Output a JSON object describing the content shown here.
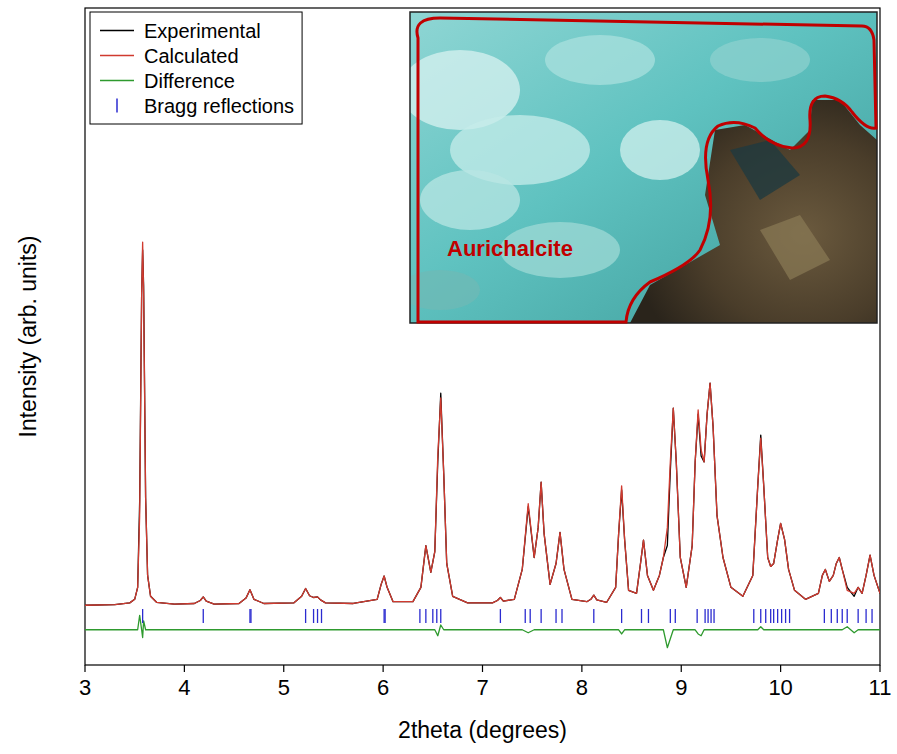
{
  "chart_data": {
    "type": "line",
    "x_label": "2theta (degrees)",
    "y_label": "Intensity (arb. units)",
    "xlim": [
      3,
      11
    ],
    "xticks": [
      3,
      4,
      5,
      6,
      7,
      8,
      9,
      10,
      11
    ],
    "ylim": [
      -10,
      100
    ],
    "tick_labels": "x",
    "grid": false,
    "legend": "upper left",
    "annotations": [
      {
        "text": "Aurichalcite"
      }
    ],
    "x": [
      3.0,
      3.3,
      3.45,
      3.5,
      3.53,
      3.55,
      3.57,
      3.58,
      3.59,
      3.61,
      3.63,
      3.66,
      3.72,
      3.9,
      4.1,
      4.16,
      4.19,
      4.22,
      4.3,
      4.55,
      4.62,
      4.66,
      4.7,
      4.8,
      5.1,
      5.18,
      5.22,
      5.26,
      5.3,
      5.34,
      5.37,
      5.42,
      5.7,
      5.94,
      5.98,
      6.01,
      6.04,
      6.1,
      6.3,
      6.38,
      6.43,
      6.48,
      6.52,
      6.55,
      6.58,
      6.61,
      6.64,
      6.7,
      6.85,
      7.1,
      7.15,
      7.18,
      7.21,
      7.32,
      7.4,
      7.46,
      7.52,
      7.56,
      7.59,
      7.62,
      7.68,
      7.74,
      7.78,
      7.82,
      7.9,
      8.05,
      8.09,
      8.12,
      8.15,
      8.25,
      8.34,
      8.37,
      8.4,
      8.43,
      8.47,
      8.55,
      8.59,
      8.62,
      8.66,
      8.72,
      8.78,
      8.82,
      8.86,
      8.89,
      8.92,
      8.95,
      8.99,
      9.05,
      9.11,
      9.14,
      9.17,
      9.2,
      9.23,
      9.26,
      9.29,
      9.32,
      9.36,
      9.42,
      9.5,
      9.62,
      9.72,
      9.77,
      9.8,
      9.83,
      9.87,
      9.9,
      9.93,
      9.97,
      10.0,
      10.04,
      10.08,
      10.14,
      10.25,
      10.38,
      10.42,
      10.45,
      10.49,
      10.53,
      10.56,
      10.59,
      10.62,
      10.67,
      10.74,
      10.78,
      10.82,
      10.86,
      10.9,
      10.94,
      11.0
    ],
    "series": [
      {
        "name": "Experimental",
        "color": "#000000",
        "type": "line",
        "line_style": "solid",
        "values": [
          0,
          0.1,
          0.4,
          1,
          3,
          17.4,
          52,
          59.5,
          53.5,
          18,
          5,
          1.5,
          0.5,
          0.2,
          0.3,
          0.8,
          1.4,
          0.7,
          0.2,
          0.3,
          1.2,
          2.6,
          1,
          0.3,
          0.4,
          1.5,
          2.8,
          1.6,
          1.3,
          1.4,
          0.9,
          0.4,
          0.3,
          1,
          3.5,
          4.9,
          3,
          0.6,
          0.6,
          3,
          10,
          5.5,
          9,
          24,
          35.5,
          22,
          7,
          1.5,
          0.4,
          0.4,
          0.8,
          1.3,
          0.7,
          1,
          6,
          16.5,
          8,
          13,
          20.6,
          12,
          3.5,
          7,
          12.2,
          6,
          1,
          0.6,
          1,
          1.7,
          0.9,
          0.5,
          3,
          12,
          19.3,
          11,
          2.5,
          2,
          7,
          10.9,
          5,
          2.5,
          5,
          8,
          10,
          22.5,
          33,
          24,
          8,
          3,
          10,
          24,
          32,
          25,
          24,
          32,
          37.2,
          30,
          15,
          8,
          3,
          1.5,
          5,
          20,
          28.5,
          20,
          8,
          6.5,
          7,
          11,
          13.7,
          11,
          6,
          2.5,
          1,
          2,
          5,
          6,
          4,
          5,
          7,
          8,
          6,
          3,
          1.5,
          3,
          2,
          5,
          8.4,
          5,
          2
        ]
      },
      {
        "name": "Calculated",
        "color": "#d03a2f",
        "type": "line",
        "line_style": "solid",
        "values": [
          0,
          0.1,
          0.4,
          1,
          3,
          15,
          52,
          60.8,
          52,
          18,
          5,
          1.5,
          0.5,
          0.2,
          0.3,
          0.8,
          1.4,
          0.7,
          0.2,
          0.3,
          1.2,
          2.6,
          1,
          0.3,
          0.4,
          1.5,
          2.8,
          1.6,
          1.3,
          1.4,
          0.9,
          0.4,
          0.3,
          1,
          3.5,
          4.9,
          3,
          0.6,
          0.6,
          3,
          10,
          5.5,
          9,
          25,
          34.7,
          22,
          7,
          1.5,
          0.4,
          0.4,
          0.8,
          1.3,
          0.7,
          1,
          6,
          17,
          8,
          13,
          20.6,
          12,
          3.5,
          7,
          12.2,
          6,
          1,
          0.6,
          1,
          1.7,
          0.9,
          0.5,
          3,
          12,
          20,
          11,
          2.5,
          2,
          7,
          10.9,
          5,
          2.5,
          5,
          8,
          13,
          24,
          33,
          24,
          8,
          3,
          10,
          24,
          32.7,
          26,
          24,
          32,
          37.2,
          30,
          15,
          8,
          3,
          1.5,
          5,
          20,
          28,
          20,
          8,
          6.5,
          7,
          11,
          13.7,
          11,
          6,
          2.5,
          1,
          2,
          5,
          6,
          4,
          5,
          7,
          8,
          6,
          2.5,
          2,
          3,
          2,
          5,
          8.4,
          5,
          2
        ]
      },
      {
        "name": "Difference",
        "color": "#2e9a2e",
        "type": "line",
        "line_style": "solid",
        "values": [
          -4.1,
          -4.1,
          -4.1,
          -4.1,
          -4.1,
          -1.7,
          -4.1,
          -5.4,
          -2.6,
          -4.1,
          -4.1,
          -4.1,
          -4.1,
          -4.1,
          -4.1,
          -4.1,
          -4.1,
          -4.1,
          -4.1,
          -4.1,
          -4.1,
          -4.1,
          -4.1,
          -4.1,
          -4.1,
          -4.1,
          -4.1,
          -4.1,
          -4.1,
          -4.1,
          -4.1,
          -4.1,
          -4.1,
          -4.1,
          -4.1,
          -4.1,
          -4.1,
          -4.1,
          -4.1,
          -4.1,
          -4.1,
          -4.1,
          -4.1,
          -5.1,
          -3.3,
          -4.1,
          -4.1,
          -4.1,
          -4.1,
          -4.1,
          -4.1,
          -4.1,
          -4.1,
          -4.1,
          -4.1,
          -4.6,
          -4.1,
          -4.1,
          -4.1,
          -4.1,
          -4.1,
          -4.1,
          -4.1,
          -4.1,
          -4.1,
          -4.1,
          -4.1,
          -4.1,
          -4.1,
          -4.1,
          -4.1,
          -4.1,
          -4.8,
          -4.1,
          -4.1,
          -4.1,
          -4.1,
          -4.1,
          -4.1,
          -4.1,
          -4.1,
          -4.1,
          -7.1,
          -5.6,
          -4.1,
          -4.1,
          -4.1,
          -4.1,
          -4.1,
          -4.1,
          -4.8,
          -5.1,
          -4.1,
          -4.1,
          -4.1,
          -4.1,
          -4.1,
          -4.1,
          -4.1,
          -4.1,
          -4.1,
          -4.1,
          -3.6,
          -4.1,
          -4.1,
          -4.1,
          -4.1,
          -4.1,
          -4.1,
          -4.1,
          -4.1,
          -4.1,
          -4.1,
          -4.1,
          -4.1,
          -4.1,
          -4.1,
          -4.1,
          -4.1,
          -4.1,
          -4.1,
          -3.6,
          -4.6,
          -4.1,
          -4.1,
          -4.1,
          -4.1,
          -4.1,
          -4.1
        ]
      },
      {
        "name": "Bragg reflections",
        "color": "#2b2bd0",
        "type": "scatter",
        "marker": "vline",
        "x": [
          3.58,
          4.19,
          4.66,
          4.67,
          5.22,
          5.3,
          5.34,
          5.38,
          6.01,
          6.02,
          6.37,
          6.43,
          6.5,
          6.54,
          6.58,
          7.18,
          7.43,
          7.48,
          7.59,
          7.74,
          7.8,
          8.12,
          8.4,
          8.6,
          8.67,
          8.89,
          8.94,
          9.16,
          9.24,
          9.27,
          9.3,
          9.33,
          9.73,
          9.8,
          9.85,
          9.9,
          9.93,
          9.97,
          10.01,
          10.05,
          10.09,
          10.44,
          10.51,
          10.57,
          10.62,
          10.67,
          10.78,
          10.86,
          10.92
        ],
        "values": [
          -1.8,
          -1.8,
          -1.8,
          -1.8,
          -1.8,
          -1.8,
          -1.8,
          -1.8,
          -1.8,
          -1.8,
          -1.8,
          -1.8,
          -1.8,
          -1.8,
          -1.8,
          -1.8,
          -1.8,
          -1.8,
          -1.8,
          -1.8,
          -1.8,
          -1.8,
          -1.8,
          -1.8,
          -1.8,
          -1.8,
          -1.8,
          -1.8,
          -1.8,
          -1.8,
          -1.8,
          -1.8,
          -1.8,
          -1.8,
          -1.8,
          -1.8,
          -1.8,
          -1.8,
          -1.8,
          -1.8,
          -1.8,
          -1.8,
          -1.8,
          -1.8,
          -1.8,
          -1.8,
          -1.8,
          -1.8,
          -1.8
        ]
      }
    ]
  }
}
